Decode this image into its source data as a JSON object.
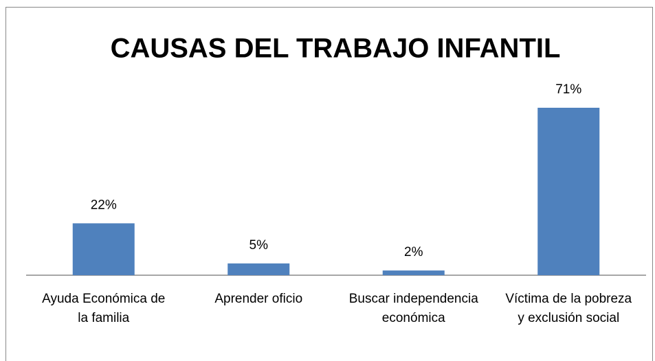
{
  "chart_data": {
    "type": "bar",
    "title": "CAUSAS DEL TRABAJO INFANTIL",
    "categories": [
      "Ayuda Económica de la familia",
      "Aprender oficio",
      "Buscar independencia económica",
      "Víctima de la pobreza y exclusión social"
    ],
    "values": [
      22,
      5,
      2,
      71
    ],
    "value_labels": [
      "22%",
      "5%",
      "2%",
      "71%"
    ],
    "color": "#4f81bd"
  }
}
